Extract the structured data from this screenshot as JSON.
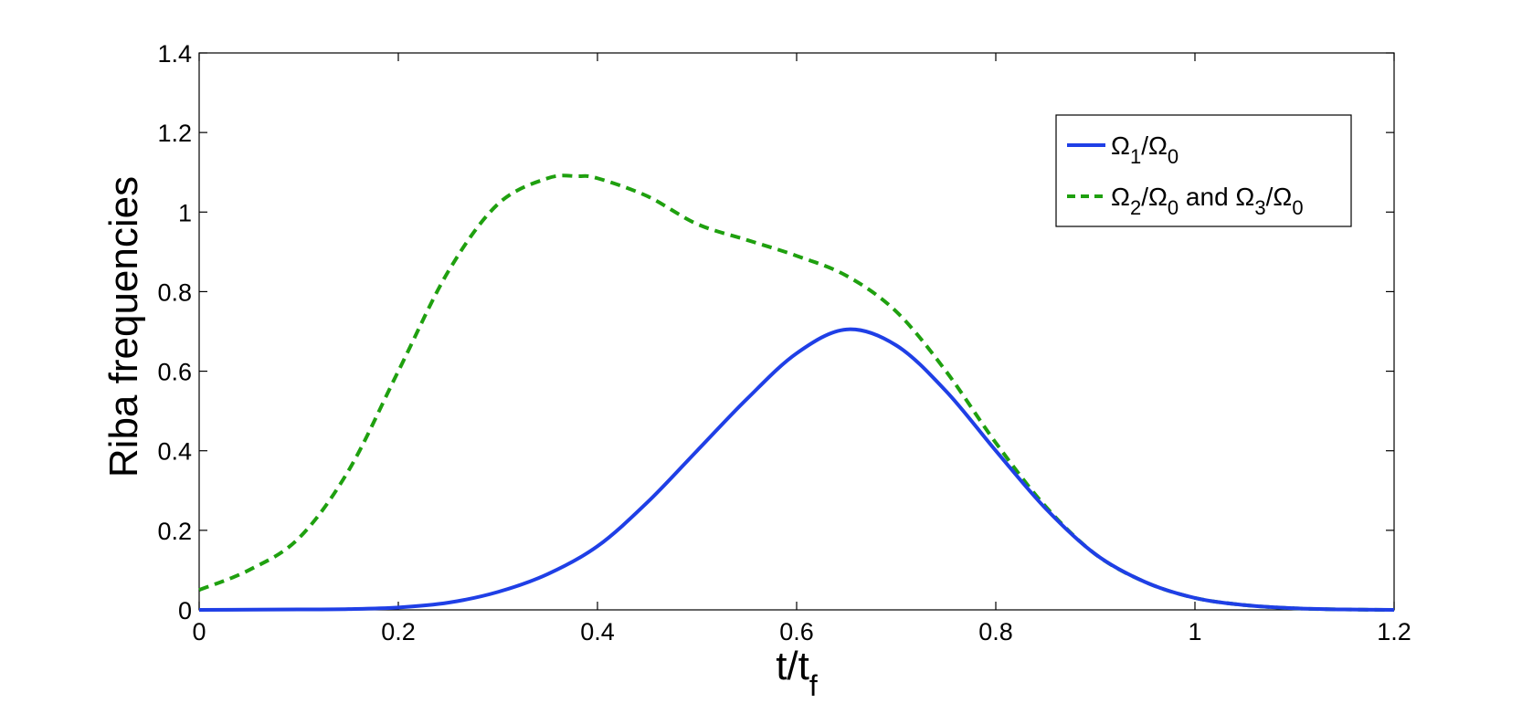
{
  "chart_data": {
    "type": "line",
    "title": "",
    "xlabel_main": "t/t",
    "xlabel_sub": "f",
    "ylabel": "Riba frequencies",
    "xlim": [
      0,
      1.2
    ],
    "ylim": [
      0,
      1.4
    ],
    "xticks": [
      "0",
      "0.2",
      "0.4",
      "0.6",
      "0.8",
      "1",
      "1.2"
    ],
    "yticks": [
      "0",
      "0.2",
      "0.4",
      "0.6",
      "0.8",
      "1",
      "1.2",
      "1.4"
    ],
    "grid": false,
    "legend_position": "top-right",
    "series": [
      {
        "name": "Ω1/Ω0",
        "legend_parts": [
          [
            "Ω",
            ""
          ],
          [
            "1",
            "sub"
          ],
          [
            "/Ω",
            ""
          ],
          [
            "0",
            "sub"
          ]
        ],
        "color": "#1f3fe6",
        "style": "solid",
        "x": [
          0,
          0.1,
          0.15,
          0.2,
          0.25,
          0.3,
          0.35,
          0.4,
          0.45,
          0.5,
          0.55,
          0.6,
          0.65,
          0.7,
          0.75,
          0.8,
          0.85,
          0.9,
          0.95,
          1.0,
          1.05,
          1.1,
          1.15,
          1.2
        ],
        "y": [
          0,
          0.001,
          0.002,
          0.006,
          0.018,
          0.045,
          0.09,
          0.16,
          0.27,
          0.4,
          0.53,
          0.645,
          0.705,
          0.665,
          0.55,
          0.4,
          0.255,
          0.14,
          0.07,
          0.03,
          0.012,
          0.004,
          0.001,
          0
        ]
      },
      {
        "name": "Ω2/Ω0 and Ω3/Ω0",
        "legend_parts": [
          [
            "Ω",
            ""
          ],
          [
            "2",
            "sub"
          ],
          [
            "/Ω",
            ""
          ],
          [
            "0",
            "sub"
          ],
          [
            " and Ω",
            ""
          ],
          [
            "3",
            "sub"
          ],
          [
            "/Ω",
            ""
          ],
          [
            "0",
            "sub"
          ]
        ],
        "color": "#1fa00f",
        "style": "dashed",
        "x": [
          0,
          0.05,
          0.1,
          0.15,
          0.2,
          0.25,
          0.3,
          0.35,
          0.38,
          0.4,
          0.45,
          0.5,
          0.55,
          0.6,
          0.65,
          0.7,
          0.75,
          0.8,
          0.85,
          0.9,
          0.95,
          1.0,
          1.05,
          1.1,
          1.15,
          1.2
        ],
        "y": [
          0.05,
          0.1,
          0.18,
          0.35,
          0.6,
          0.85,
          1.02,
          1.085,
          1.09,
          1.085,
          1.04,
          0.97,
          0.93,
          0.89,
          0.84,
          0.75,
          0.6,
          0.42,
          0.26,
          0.14,
          0.07,
          0.03,
          0.012,
          0.004,
          0.001,
          0
        ]
      }
    ]
  }
}
